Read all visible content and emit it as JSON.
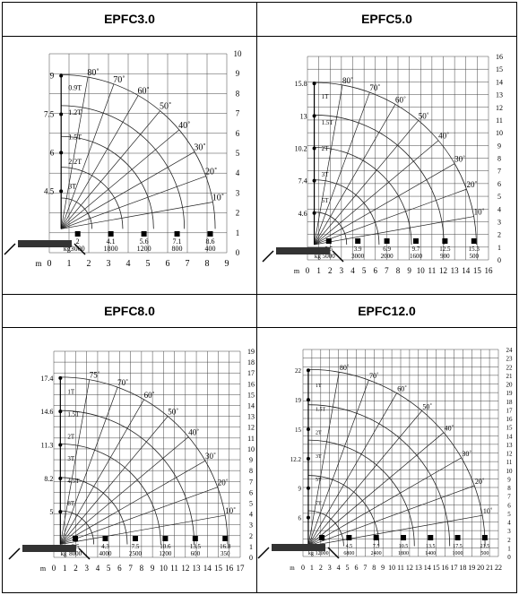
{
  "panels": [
    {
      "title": "EPFC3.0",
      "x_axis_unit": "m",
      "x_ticks": [
        "0",
        "1",
        "2",
        "3",
        "4",
        "5",
        "6",
        "7",
        "8",
        "9"
      ],
      "y_ticks": [
        "0",
        "1",
        "2",
        "3",
        "4",
        "5",
        "6",
        "7",
        "8",
        "9",
        "10"
      ],
      "angle_labels": [
        "80˚",
        "70˚",
        "60˚",
        "50˚",
        "40˚",
        "30˚",
        "20˚",
        "10˚"
      ],
      "height_labels": [
        "9",
        "7.5",
        "6",
        "4.5"
      ],
      "boom_loads": [
        "0.9T",
        "1.2T",
        "1.5T",
        "2.2T",
        "3T"
      ],
      "bottom_radius": [
        "2",
        "4.1",
        "5.6",
        "7.1",
        "8.6"
      ],
      "bottom_loads": [
        "3000",
        "1800",
        "1200",
        "800",
        "400"
      ],
      "kg_label": "kg"
    },
    {
      "title": "EPFC5.0",
      "x_axis_unit": "m",
      "x_ticks": [
        "0",
        "1",
        "2",
        "3",
        "4",
        "5",
        "6",
        "7",
        "8",
        "9",
        "10",
        "11",
        "12",
        "13",
        "14",
        "15",
        "16"
      ],
      "y_ticks": [
        "0",
        "1",
        "2",
        "3",
        "4",
        "5",
        "6",
        "7",
        "8",
        "9",
        "10",
        "11",
        "12",
        "13",
        "14",
        "15",
        "16"
      ],
      "angle_labels": [
        "80˚",
        "70˚",
        "60˚",
        "50˚",
        "40˚",
        "30˚",
        "20˚",
        "10˚"
      ],
      "height_labels": [
        "15.8",
        "13",
        "10.2",
        "7.4",
        "4.6"
      ],
      "boom_loads": [
        "1T",
        "1.5T",
        "2T",
        "3T",
        "5T"
      ],
      "bottom_radius": [
        "3.5",
        "3.9",
        "6.9",
        "9.7",
        "12.5",
        "15.3"
      ],
      "bottom_loads": [
        "5000",
        "3000",
        "2000",
        "1600",
        "900",
        "500"
      ],
      "kg_label": "kg"
    },
    {
      "title": "EPFC8.0",
      "x_axis_unit": "m",
      "x_ticks": [
        "0",
        "1",
        "2",
        "3",
        "4",
        "5",
        "6",
        "7",
        "8",
        "9",
        "10",
        "11",
        "12",
        "13",
        "14",
        "15",
        "16",
        "17"
      ],
      "y_ticks": [
        "0",
        "1",
        "2",
        "3",
        "4",
        "5",
        "6",
        "7",
        "8",
        "9",
        "10",
        "11",
        "12",
        "13",
        "14",
        "15",
        "16",
        "17",
        "18",
        "19"
      ],
      "angle_labels": [
        "75˚",
        "70˚",
        "60˚",
        "50˚",
        "40˚",
        "30˚",
        "20˚",
        "10˚"
      ],
      "height_labels": [
        "17.4",
        "14.6",
        "11.3",
        "8.2",
        "5"
      ],
      "boom_loads": [
        "1T",
        "1.5T",
        "2T",
        "3T",
        "4.5T",
        "8T"
      ],
      "bottom_radius": [
        "2.5",
        "4.3",
        "7.5",
        "10.6",
        "13.5",
        "16.8"
      ],
      "bottom_loads": [
        "8000",
        "4000",
        "2500",
        "1200",
        "600",
        "350"
      ],
      "kg_label": "kg"
    },
    {
      "title": "EPFC12.0",
      "x_axis_unit": "m",
      "x_ticks": [
        "0",
        "1",
        "2",
        "3",
        "4",
        "5",
        "6",
        "7",
        "8",
        "9",
        "10",
        "11",
        "12",
        "13",
        "14",
        "15",
        "16",
        "17",
        "18",
        "19",
        "20",
        "21",
        "22"
      ],
      "y_ticks": [
        "0",
        "1",
        "2",
        "3",
        "4",
        "5",
        "6",
        "7",
        "8",
        "9",
        "10",
        "11",
        "12",
        "13",
        "14",
        "15",
        "16",
        "17",
        "18",
        "19",
        "20",
        "21",
        "22",
        "23",
        "24"
      ],
      "angle_labels": [
        "80˚",
        "70˚",
        "60˚",
        "50˚",
        "40˚",
        "30˚",
        "20˚",
        "10˚"
      ],
      "height_labels": [
        "22",
        "19",
        "15",
        "12.2",
        "9",
        "6"
      ],
      "boom_loads": [
        "1T",
        "1.5T",
        "2T",
        "3T",
        "5T",
        "7T"
      ],
      "bottom_radius": [
        "2.5",
        "4.5",
        "7.5",
        "10.5",
        "13.5",
        "17.5",
        "21.5"
      ],
      "bottom_loads": [
        "12000",
        "6800",
        "2400",
        "1800",
        "1400",
        "1000",
        "500"
      ],
      "kg_label": "kg"
    }
  ]
}
